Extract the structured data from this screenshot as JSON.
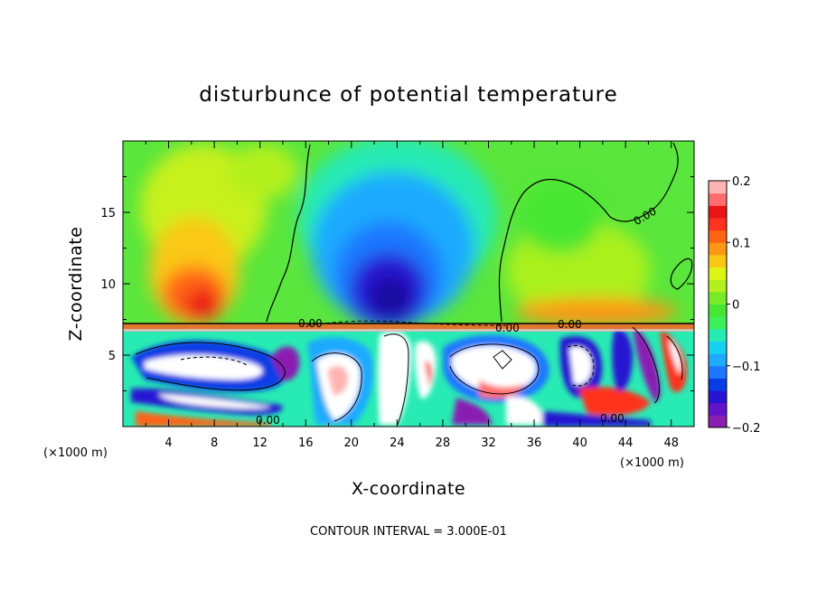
{
  "chart_data": {
    "type": "heatmap",
    "title": "disturbunce of potential temperature",
    "xlabel": "X-coordinate",
    "ylabel": "Z-coordinate",
    "x_unit": "(×1000 m)",
    "xlim": [
      0,
      50
    ],
    "ylim": [
      0,
      20
    ],
    "x_ticks": [
      4,
      8,
      12,
      16,
      20,
      24,
      28,
      32,
      36,
      40,
      44,
      48
    ],
    "y_ticks": [
      5,
      10,
      15
    ],
    "colorbar": {
      "range": [
        -0.2,
        0.2
      ],
      "tick_values": [
        -0.2,
        -0.1,
        0,
        0.1,
        0.2
      ],
      "tick_labels": [
        "−0.2",
        "−0.1",
        "0",
        "0.1",
        "0.2"
      ],
      "colors": [
        "#8a1fb2",
        "#6414c8",
        "#2814d2",
        "#0a3ce6",
        "#1e78ff",
        "#1eaaff",
        "#14d2f0",
        "#28ebb4",
        "#3cf05a",
        "#46e632",
        "#78eb28",
        "#b4f01e",
        "#dcf514",
        "#fac814",
        "#ff9614",
        "#ff6414",
        "#ff321e",
        "#eb1414",
        "#ff6e6e",
        "#ffb4b4"
      ]
    },
    "contour_labels": [
      "0.00",
      "0.00",
      "0.00",
      "0.00",
      "0.00",
      "0.00"
    ],
    "contour_interval_text": "CONTOUR INTERVAL = 3.000E-01",
    "features": [
      {
        "name": "warm anomaly",
        "x": 8,
        "z": 11,
        "value": 0.12
      },
      {
        "name": "cold anomaly",
        "x": 23,
        "z": 11.5,
        "value": -0.17
      },
      {
        "name": "warm anomaly",
        "x": 43,
        "z": 9.5,
        "value": 0.08
      },
      {
        "name": "boundary layer top",
        "z": 7.2
      }
    ]
  }
}
